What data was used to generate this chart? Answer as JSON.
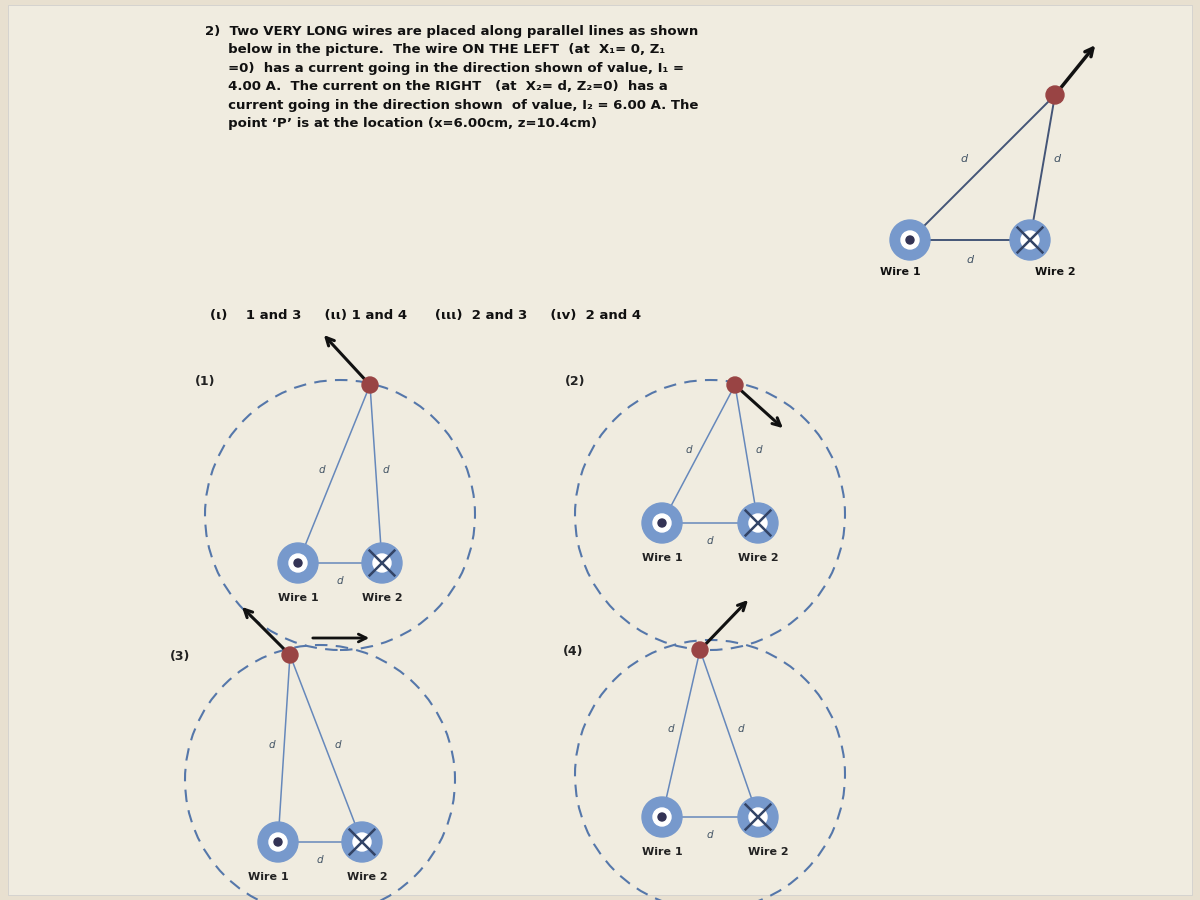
{
  "bg_color": "#e8e0d0",
  "title_line1": "2)  Two VERY LONG wires are placed along parallel lines as shown",
  "title_line2": "     below in the picture.  The wire ON THE LEFT  (at  X₁= 0, Z₁",
  "title_line3": "     =0)  has a current going in the direction shown of value, I₁ =",
  "title_line4": "     4.00 A.  The current on the RIGHT   (at  X₂= d, Z₂=0)  has a",
  "title_line5": "     current going in the direction shown  of value, I₂ = 6.00 A. The",
  "title_line6": "     point ‘P’ is at the location (x=6.00cm, z=10.4cm)",
  "wire1_label": "Wire 1",
  "wire2_label": "Wire 2",
  "choice_line": "(ι)    1 and 3     (ιι) 1 and 4      (ιιι)  2 and 3     (ιv)  2 and 4",
  "circle_color": "#5577aa",
  "line_color": "#6688bb",
  "wire_color": "#7799cc",
  "arrow_color": "#111111",
  "p_color": "#994444",
  "d_color": "#445566",
  "label_color": "#222222"
}
